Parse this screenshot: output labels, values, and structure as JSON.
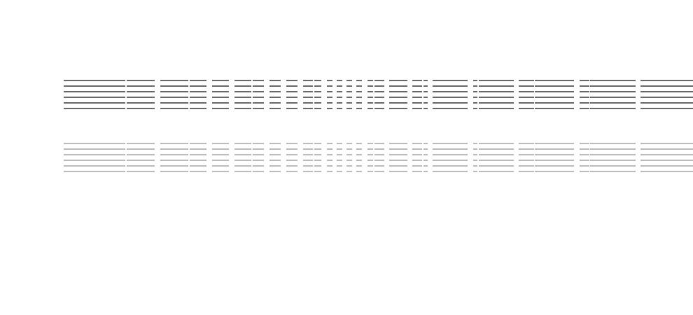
{
  "colors": {
    "background": "#ffffff",
    "dark_block": "#66686b",
    "light_block": "#b8babc"
  },
  "blocks": [
    {
      "name": "dark-placeholder-block",
      "tone": "dark",
      "rows": 6
    },
    {
      "name": "light-placeholder-block",
      "tone": "light",
      "rows": 6
    }
  ]
}
